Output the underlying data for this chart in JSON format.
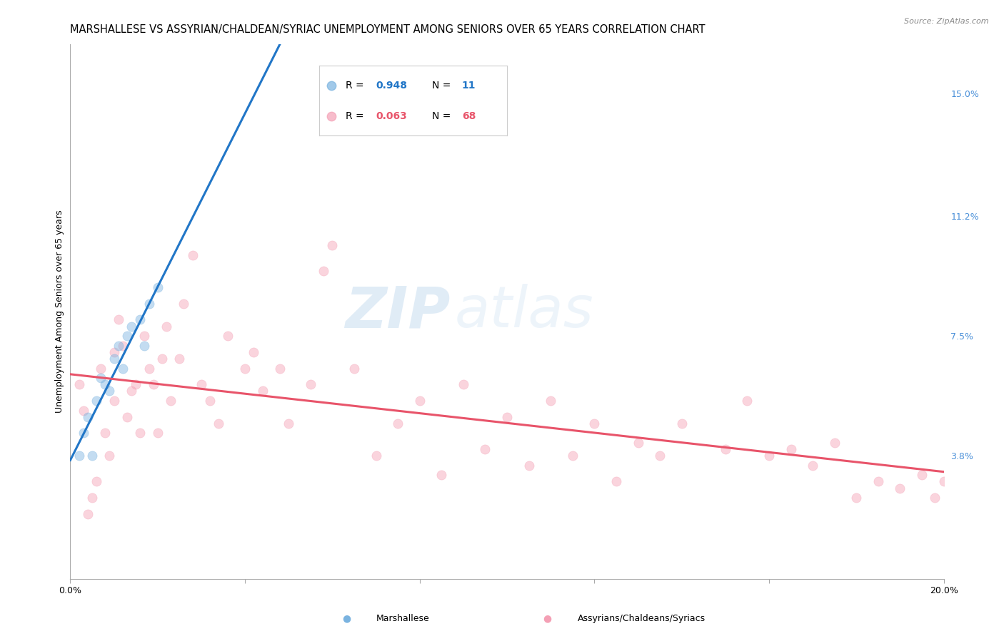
{
  "title": "MARSHALLESE VS ASSYRIAN/CHALDEAN/SYRIAC UNEMPLOYMENT AMONG SENIORS OVER 65 YEARS CORRELATION CHART",
  "source": "Source: ZipAtlas.com",
  "ylabel": "Unemployment Among Seniors over 65 years",
  "xlim": [
    0.0,
    0.2
  ],
  "ylim": [
    0.0,
    0.165
  ],
  "x_ticks": [
    0.0,
    0.04,
    0.08,
    0.12,
    0.16,
    0.2
  ],
  "x_tick_labels": [
    "0.0%",
    "",
    "",
    "",
    "",
    "20.0%"
  ],
  "y_ticks_right": [
    0.0,
    0.038,
    0.075,
    0.112,
    0.15
  ],
  "y_tick_labels_right": [
    "",
    "3.8%",
    "7.5%",
    "11.2%",
    "15.0%"
  ],
  "marshallese_color": "#7ab3e0",
  "assyrian_color": "#f4a0b5",
  "trendline_marshallese_color": "#2176c7",
  "trendline_assyrian_color": "#e8546a",
  "watermark_zip": "ZIP",
  "watermark_atlas": "atlas",
  "background_color": "#ffffff",
  "grid_color": "#cccccc",
  "marshallese_x": [
    0.002,
    0.003,
    0.004,
    0.005,
    0.006,
    0.007,
    0.008,
    0.009,
    0.01,
    0.011,
    0.012,
    0.013,
    0.014,
    0.016,
    0.017,
    0.018,
    0.02
  ],
  "marshallese_y": [
    0.038,
    0.045,
    0.05,
    0.038,
    0.055,
    0.062,
    0.06,
    0.058,
    0.068,
    0.072,
    0.065,
    0.075,
    0.078,
    0.08,
    0.072,
    0.085,
    0.09
  ],
  "assyrian_x": [
    0.002,
    0.003,
    0.004,
    0.005,
    0.006,
    0.007,
    0.008,
    0.009,
    0.01,
    0.01,
    0.011,
    0.012,
    0.013,
    0.014,
    0.015,
    0.016,
    0.017,
    0.018,
    0.019,
    0.02,
    0.021,
    0.022,
    0.023,
    0.025,
    0.026,
    0.028,
    0.03,
    0.032,
    0.034,
    0.036,
    0.04,
    0.042,
    0.044,
    0.048,
    0.05,
    0.055,
    0.058,
    0.06,
    0.065,
    0.07,
    0.075,
    0.08,
    0.085,
    0.09,
    0.095,
    0.1,
    0.105,
    0.11,
    0.115,
    0.12,
    0.125,
    0.13,
    0.135,
    0.14,
    0.15,
    0.155,
    0.16,
    0.165,
    0.17,
    0.175,
    0.18,
    0.185,
    0.19,
    0.195,
    0.198,
    0.2
  ],
  "assyrian_y": [
    0.06,
    0.052,
    0.02,
    0.025,
    0.03,
    0.065,
    0.045,
    0.038,
    0.07,
    0.055,
    0.08,
    0.072,
    0.05,
    0.058,
    0.06,
    0.045,
    0.075,
    0.065,
    0.06,
    0.045,
    0.068,
    0.078,
    0.055,
    0.068,
    0.085,
    0.1,
    0.06,
    0.055,
    0.048,
    0.075,
    0.065,
    0.07,
    0.058,
    0.065,
    0.048,
    0.06,
    0.095,
    0.103,
    0.065,
    0.038,
    0.048,
    0.055,
    0.032,
    0.06,
    0.04,
    0.05,
    0.035,
    0.055,
    0.038,
    0.048,
    0.03,
    0.042,
    0.038,
    0.048,
    0.04,
    0.055,
    0.038,
    0.04,
    0.035,
    0.042,
    0.025,
    0.03,
    0.028,
    0.032,
    0.025,
    0.03
  ],
  "title_fontsize": 10.5,
  "axis_label_fontsize": 9,
  "tick_fontsize": 9,
  "marker_size": 90,
  "marker_alpha": 0.45
}
